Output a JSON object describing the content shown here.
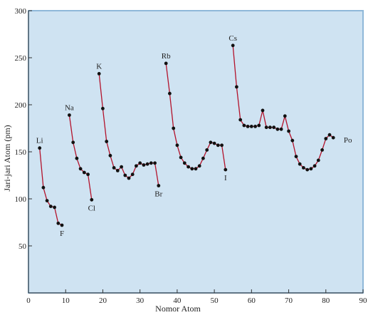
{
  "chart_data": {
    "type": "line",
    "xlabel": "Nomor Atom",
    "ylabel": "Jari-jari Atom (pm)",
    "xlim": [
      0,
      90
    ],
    "ylim": [
      0,
      300
    ],
    "x_ticks": [
      0,
      10,
      20,
      30,
      40,
      50,
      60,
      70,
      80,
      90
    ],
    "y_ticks": [
      50,
      100,
      150,
      200,
      250,
      300
    ],
    "grid": false,
    "colors": {
      "plot_background": "#cfe3f2",
      "plot_border": "#8fb8d9",
      "line": "#b3122b",
      "marker": "#111111"
    },
    "series": [
      {
        "x": [
          3,
          4,
          5,
          6,
          7,
          8,
          9
        ],
        "y": [
          154,
          112,
          98,
          92,
          91,
          74,
          72
        ]
      },
      {
        "x": [
          11,
          12,
          13,
          14,
          15,
          16,
          17
        ],
        "y": [
          189,
          160,
          143,
          132,
          128,
          126,
          99
        ]
      },
      {
        "x": [
          19,
          20,
          21,
          22,
          23,
          24,
          25,
          26,
          27,
          28,
          29,
          30,
          31,
          32,
          33,
          34,
          35
        ],
        "y": [
          233,
          196,
          161,
          146,
          133,
          130,
          134,
          125,
          122,
          126,
          135,
          138,
          136,
          137,
          138,
          138,
          114
        ]
      },
      {
        "x": [
          37,
          38,
          39,
          40,
          41,
          42,
          43,
          44,
          45,
          46,
          47,
          48,
          49,
          50,
          51,
          52,
          53
        ],
        "y": [
          244,
          212,
          175,
          157,
          144,
          138,
          134,
          132,
          132,
          135,
          143,
          152,
          160,
          159,
          157,
          157,
          131
        ]
      },
      {
        "x": [
          55,
          56,
          57,
          58,
          59,
          60,
          61,
          62,
          63,
          64,
          65,
          66,
          67,
          68,
          69,
          70,
          71,
          72,
          73,
          74,
          75,
          76,
          77,
          78,
          79,
          80,
          81,
          82,
          83,
          84
        ],
        "y": [
          263,
          219,
          184,
          178,
          177,
          177,
          177,
          178,
          194,
          176,
          176,
          176,
          174,
          174,
          188,
          172,
          162,
          145,
          137,
          133,
          131,
          132,
          135,
          141,
          152,
          164,
          168,
          165,
          null,
          null
        ]
      }
    ],
    "annotations": [
      {
        "text": "Li",
        "x": 3,
        "y": 154,
        "pos": "above"
      },
      {
        "text": "Na",
        "x": 11,
        "y": 189,
        "pos": "above"
      },
      {
        "text": "K",
        "x": 19,
        "y": 233,
        "pos": "above"
      },
      {
        "text": "Rb",
        "x": 37,
        "y": 244,
        "pos": "above"
      },
      {
        "text": "Cs",
        "x": 55,
        "y": 263,
        "pos": "above"
      },
      {
        "text": "F",
        "x": 9,
        "y": 72,
        "pos": "below"
      },
      {
        "text": "Cl",
        "x": 17,
        "y": 99,
        "pos": "below"
      },
      {
        "text": "Br",
        "x": 35,
        "y": 114,
        "pos": "below"
      },
      {
        "text": "I",
        "x": 53,
        "y": 131,
        "pos": "below"
      },
      {
        "text": "Po",
        "x": 84,
        "y": 165,
        "pos": "right-below"
      }
    ]
  }
}
